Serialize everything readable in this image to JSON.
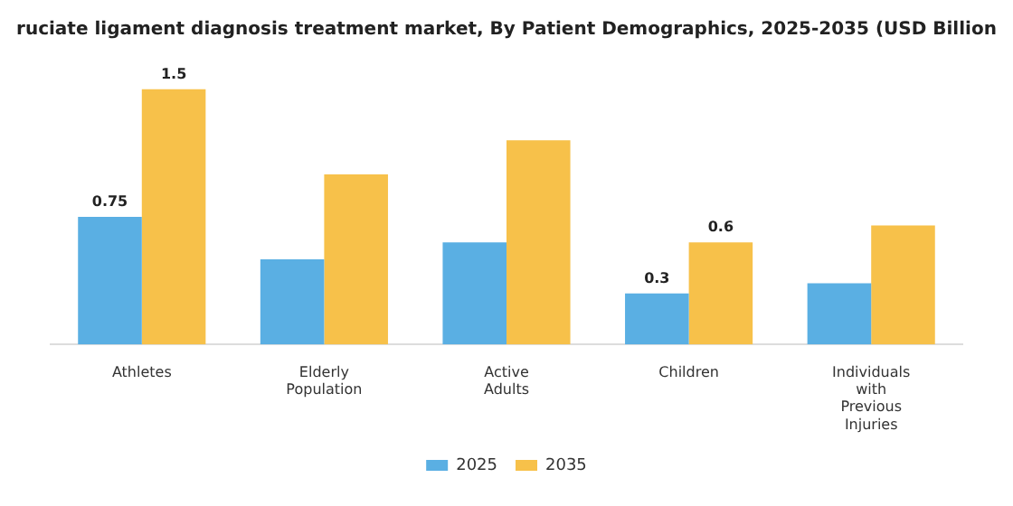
{
  "chart_data": {
    "type": "bar",
    "title": "ruciate ligament diagnosis treatment market, By Patient Demographics, 2025-2035 (USD Billion",
    "categories": [
      "Athletes",
      "Elderly Population",
      "Active Adults",
      "Children",
      "Individuals with Previous Injuries"
    ],
    "series": [
      {
        "name": "2025",
        "color": "#5aafe3",
        "values": [
          0.75,
          0.5,
          0.6,
          0.3,
          0.36
        ],
        "value_labels": [
          "0.75",
          null,
          null,
          "0.3",
          null
        ]
      },
      {
        "name": "2035",
        "color": "#f7c14a",
        "values": [
          1.5,
          1.0,
          1.2,
          0.6,
          0.7
        ],
        "value_labels": [
          "1.5",
          null,
          null,
          "0.6",
          null
        ]
      }
    ],
    "grid": false,
    "legend": "bottom"
  }
}
